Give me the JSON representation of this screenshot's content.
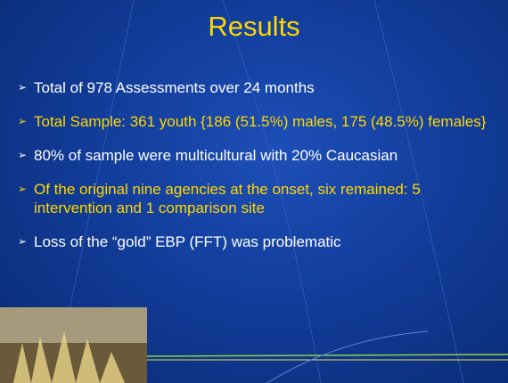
{
  "header": {
    "title": "Results"
  },
  "bullets": [
    "Total of 978 Assessments over 24 months",
    "Total Sample: 361 youth {186 (51.5%) males, 175 (48.5%) females}",
    "80% of sample were multicultural with 20% Caucasian",
    "Of the original nine agencies at the onset, six remained: 5 intervention and 1 comparison site",
    "Loss of the “gold” EBP (FFT) was problematic"
  ]
}
